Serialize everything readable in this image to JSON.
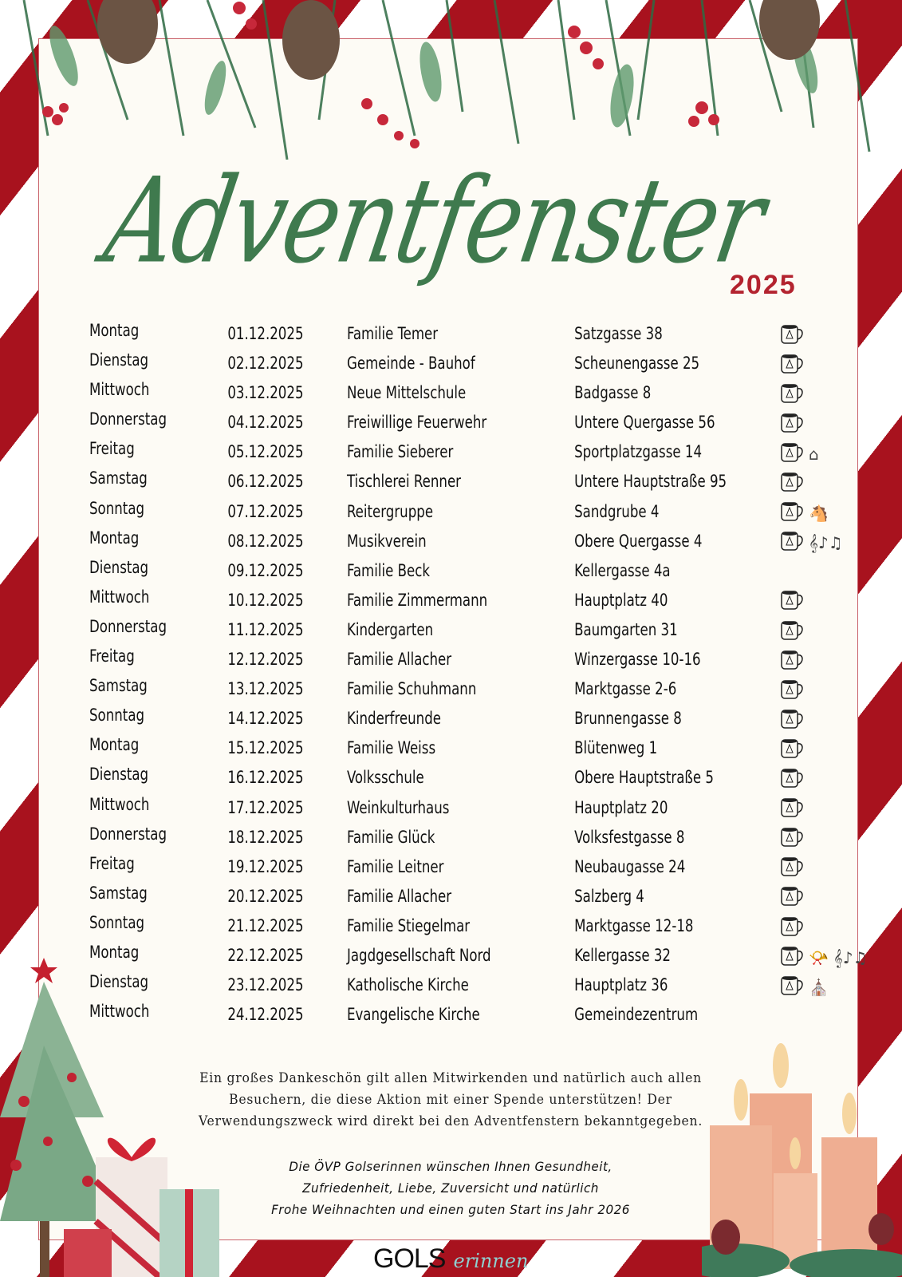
{
  "poster": {
    "title": "Adventfenster",
    "year": "2025",
    "colors": {
      "red": "#a8121e",
      "green": "#3f7a4e",
      "year_red": "#b3232f",
      "paper": "#fdfbf5"
    }
  },
  "schedule": [
    {
      "day": "Montag",
      "date": "01.12.2025",
      "host": "Familie Temer",
      "address": "Satzgasse 38",
      "icons": [
        "mug-icon"
      ]
    },
    {
      "day": "Dienstag",
      "date": "02.12.2025",
      "host": "Gemeinde - Bauhof",
      "address": "Scheunengasse 25",
      "icons": [
        "mug-icon"
      ]
    },
    {
      "day": "Mittwoch",
      "date": "03.12.2025",
      "host": "Neue Mittelschule",
      "address": "Badgasse 8",
      "icons": [
        "mug-icon"
      ]
    },
    {
      "day": "Donnerstag",
      "date": "04.12.2025",
      "host": "Freiwillige Feuerwehr",
      "address": "Untere Quergasse 56",
      "icons": [
        "mug-icon"
      ]
    },
    {
      "day": "Freitag",
      "date": "05.12.2025",
      "host": "Familie Sieberer",
      "address": "Sportplatzgasse 14",
      "icons": [
        "mug-icon",
        "nativity-stable-icon"
      ]
    },
    {
      "day": "Samstag",
      "date": "06.12.2025",
      "host": "Tischlerei Renner",
      "address": "Untere Hauptstraße 95",
      "icons": [
        "mug-icon"
      ]
    },
    {
      "day": "Sonntag",
      "date": "07.12.2025",
      "host": "Reitergruppe",
      "address": "Sandgrube 4",
      "icons": [
        "mug-icon",
        "horse-icon"
      ]
    },
    {
      "day": "Montag",
      "date": "08.12.2025",
      "host": "Musikverein",
      "address": "Obere Quergasse 4",
      "icons": [
        "mug-icon",
        "music-notes-icon"
      ]
    },
    {
      "day": "Dienstag",
      "date": "09.12.2025",
      "host": "Familie Beck",
      "address": "Kellergasse 4a",
      "icons": []
    },
    {
      "day": "Mittwoch",
      "date": "10.12.2025",
      "host": "Familie Zimmermann",
      "address": "Hauptplatz 40",
      "icons": [
        "mug-icon"
      ]
    },
    {
      "day": "Donnerstag",
      "date": "11.12.2025",
      "host": "Kindergarten",
      "address": "Baumgarten 31",
      "icons": [
        "mug-icon"
      ]
    },
    {
      "day": "Freitag",
      "date": "12.12.2025",
      "host": "Familie Allacher",
      "address": "Winzergasse 10-16",
      "icons": [
        "mug-icon"
      ]
    },
    {
      "day": "Samstag",
      "date": "13.12.2025",
      "host": "Familie Schuhmann",
      "address": "Marktgasse 2-6",
      "icons": [
        "mug-icon"
      ]
    },
    {
      "day": "Sonntag",
      "date": "14.12.2025",
      "host": "Kinderfreunde",
      "address": "Brunnengasse 8",
      "icons": [
        "mug-icon"
      ]
    },
    {
      "day": "Montag",
      "date": "15.12.2025",
      "host": "Familie Weiss",
      "address": "Blütenweg 1",
      "icons": [
        "mug-icon"
      ]
    },
    {
      "day": "Dienstag",
      "date": "16.12.2025",
      "host": "Volksschule",
      "address": "Obere Hauptstraße 5",
      "icons": [
        "mug-icon"
      ]
    },
    {
      "day": "Mittwoch",
      "date": "17.12.2025",
      "host": "Weinkulturhaus",
      "address": "Hauptplatz 20",
      "icons": [
        "mug-icon"
      ]
    },
    {
      "day": "Donnerstag",
      "date": "18.12.2025",
      "host": "Familie Glück",
      "address": "Volksfestgasse 8",
      "icons": [
        "mug-icon"
      ]
    },
    {
      "day": "Freitag",
      "date": "19.12.2025",
      "host": "Familie Leitner",
      "address": "Neubaugasse 24",
      "icons": [
        "mug-icon"
      ]
    },
    {
      "day": "Samstag",
      "date": "20.12.2025",
      "host": "Familie Allacher",
      "address": "Salzberg 4",
      "icons": [
        "mug-icon"
      ]
    },
    {
      "day": "Sonntag",
      "date": "21.12.2025",
      "host": "Familie Stiegelmar",
      "address": "Marktgasse 12-18",
      "icons": [
        "mug-icon"
      ]
    },
    {
      "day": "Montag",
      "date": "22.12.2025",
      "host": "Jagdgesellschaft Nord",
      "address": "Kellergasse 32",
      "icons": [
        "mug-icon",
        "hunting-horn-icon",
        "music-notes-icon"
      ]
    },
    {
      "day": "Dienstag",
      "date": "23.12.2025",
      "host": "Katholische Kirche",
      "address": "Hauptplatz 36",
      "icons": [
        "mug-icon",
        "church-crest-icon"
      ]
    },
    {
      "day": "Mittwoch",
      "date": "24.12.2025",
      "host": "Evangelische Kirche",
      "address": "Gemeindezentrum",
      "icons": []
    }
  ],
  "thanks": {
    "lines": [
      "Ein großes Dankeschön gilt allen  Mitwirkenden und natürlich auch allen",
      "Besuchern, die diese Aktion mit einer Spende unterstützen! Der",
      "Verwendungszweck wird direkt bei den Adventfenstern bekanntgegeben."
    ]
  },
  "wishes": {
    "lines": [
      "Die ÖVP Golserinnen wünschen Ihnen Gesundheit,",
      "Zufriedenheit, Liebe, Zuversicht und natürlich",
      "Frohe Weihnachten und einen guten Start ins Jahr 2026"
    ]
  },
  "brand": {
    "gols": "GOLS",
    "erinnen": "erinnen"
  },
  "icon_glyphs": {
    "horse-icon": "🐴",
    "music-notes-icon": "𝄞♪♫",
    "hunting-horn-icon": "📯",
    "nativity-stable-icon": "⌂",
    "church-crest-icon": "⛪"
  }
}
